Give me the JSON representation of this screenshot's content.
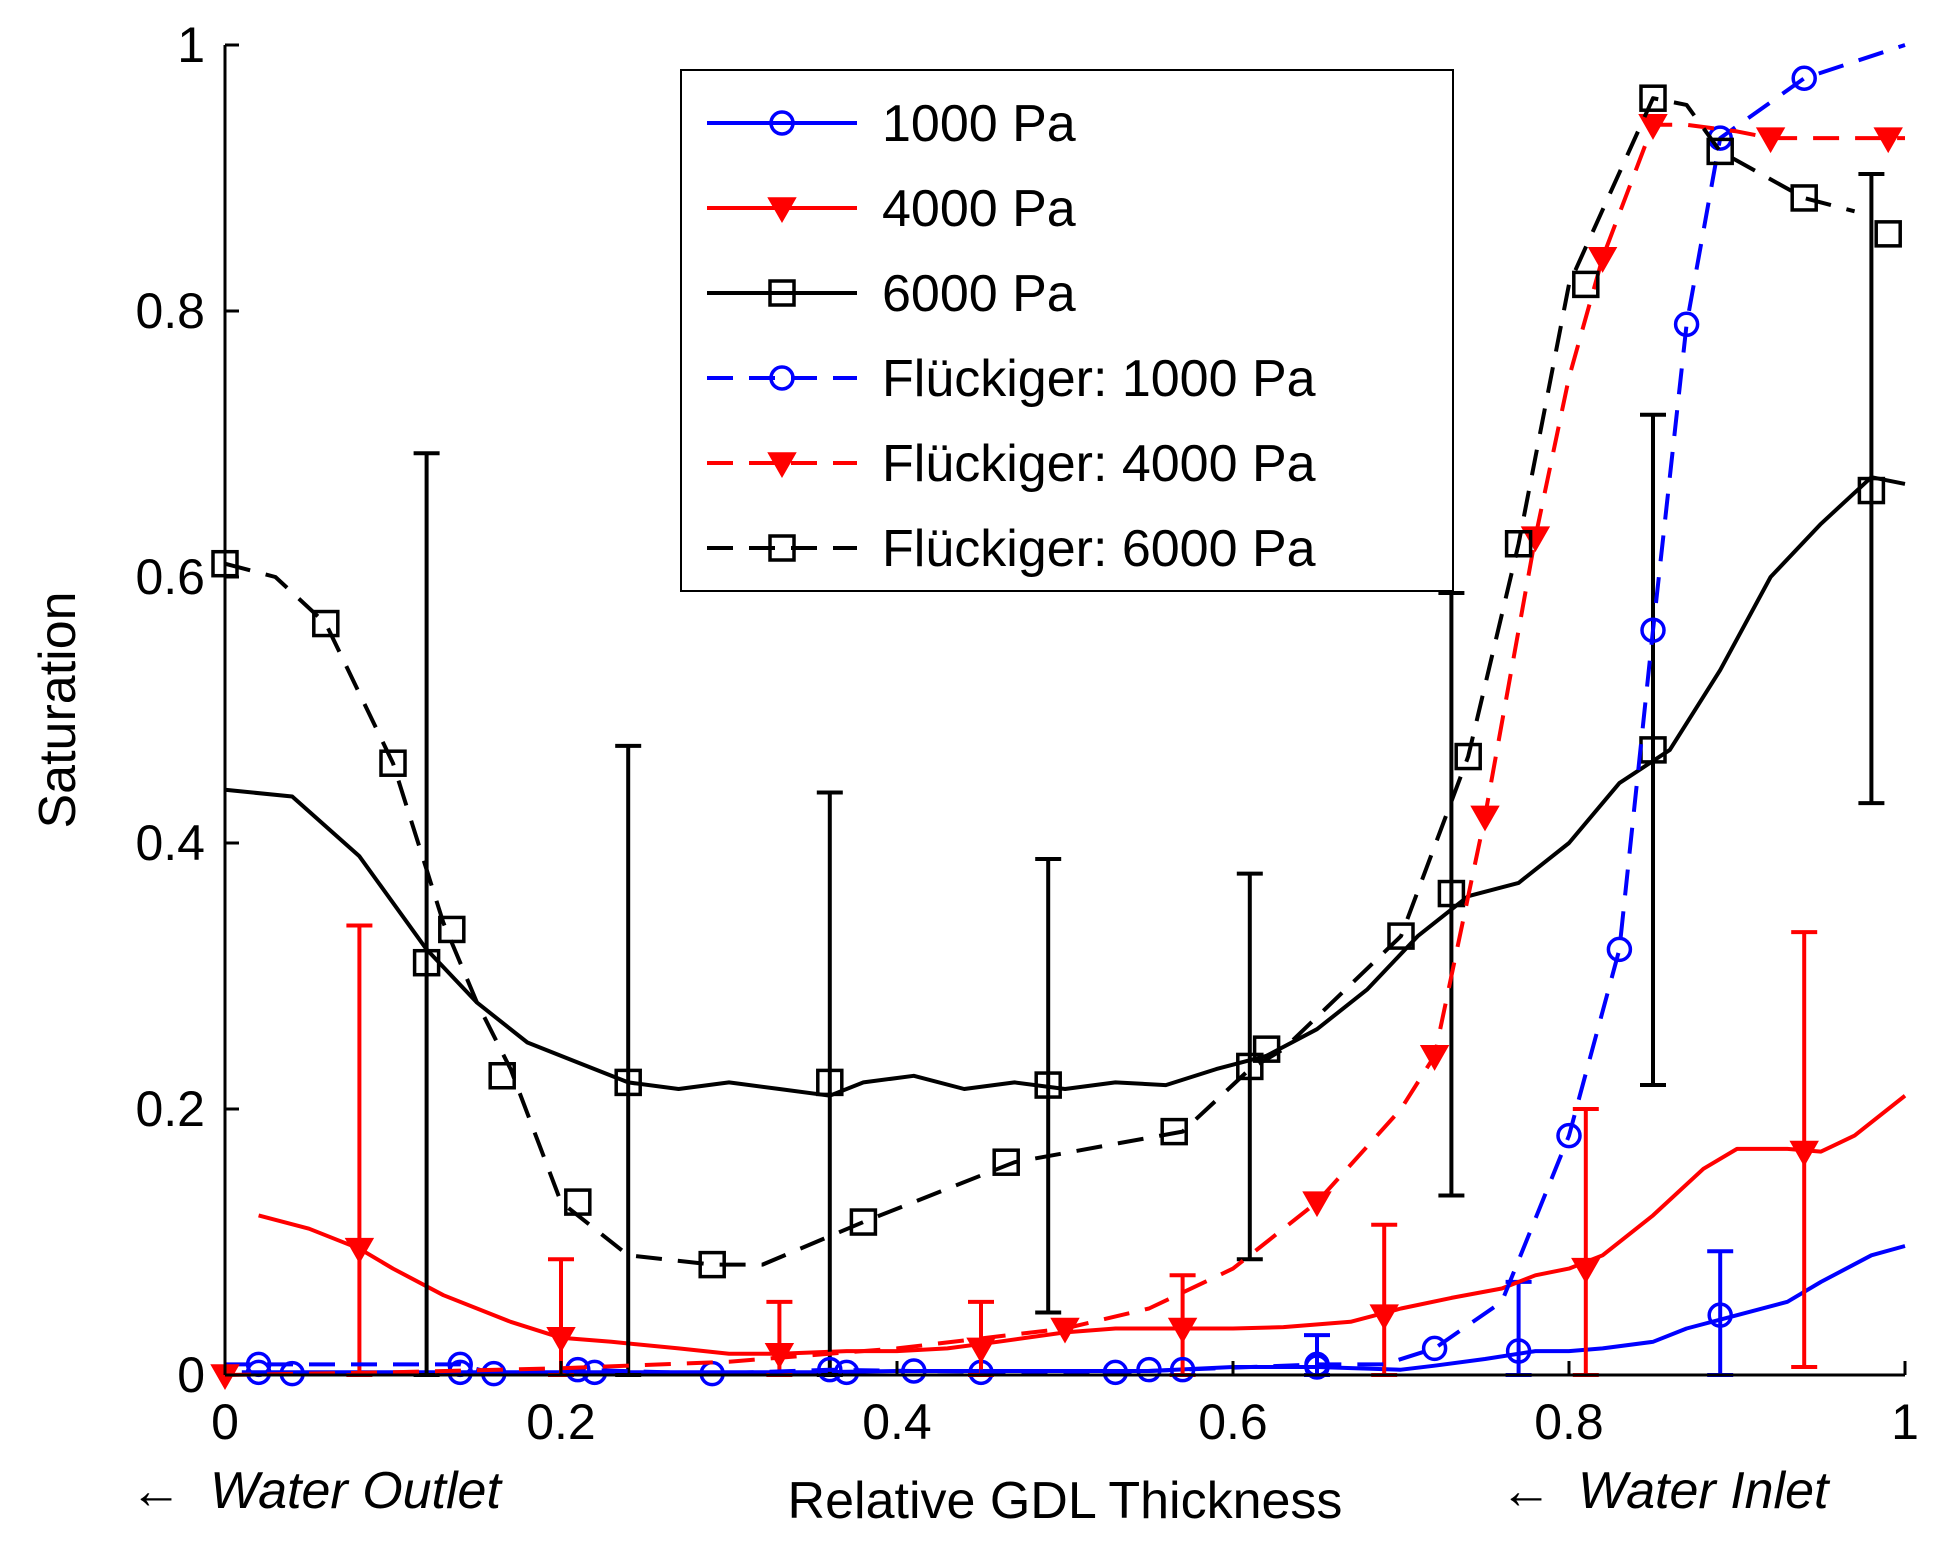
{
  "chart_data": {
    "type": "line",
    "title": "",
    "xlabel": "Relative GDL Thickness",
    "ylabel": "Saturation",
    "xlim": [
      0,
      1
    ],
    "ylim": [
      0,
      1
    ],
    "xticks": [
      0,
      0.2,
      0.4,
      0.6,
      0.8,
      1
    ],
    "xtick_labels": [
      "0",
      "0.2",
      "0.4",
      "0.6",
      "0.8",
      "1"
    ],
    "yticks": [
      0,
      0.2,
      0.4,
      0.6,
      0.8,
      1
    ],
    "ytick_labels": [
      "0",
      "0.2",
      "0.4",
      "0.6",
      "0.8",
      "1"
    ],
    "grid": false,
    "legend_position": "top-center",
    "annotations": {
      "left": "Water Outlet",
      "right": "Water Inlet",
      "arrow_glyph": "←"
    },
    "series": [
      {
        "name": "1000 Pa",
        "color": "#0000ff",
        "style": "solid",
        "marker": "circle",
        "x": [
          0.01,
          0.05,
          0.1,
          0.15,
          0.2,
          0.25,
          0.3,
          0.35,
          0.4,
          0.45,
          0.5,
          0.55,
          0.6,
          0.65,
          0.7,
          0.72,
          0.75,
          0.78,
          0.8,
          0.82,
          0.85,
          0.87,
          0.9,
          0.93,
          0.95,
          0.98,
          1.0
        ],
        "y": [
          0.002,
          0.002,
          0.002,
          0.002,
          0.002,
          0.002,
          0.002,
          0.002,
          0.003,
          0.003,
          0.003,
          0.003,
          0.006,
          0.006,
          0.004,
          0.007,
          0.012,
          0.018,
          0.018,
          0.02,
          0.025,
          0.035,
          0.045,
          0.055,
          0.07,
          0.09,
          0.097
        ],
        "marker_x": [
          0.02,
          0.14,
          0.22,
          0.37,
          0.45,
          0.55,
          0.65,
          0.77,
          0.89
        ],
        "marker_y": [
          0.002,
          0.002,
          0.002,
          0.002,
          0.002,
          0.004,
          0.006,
          0.018,
          0.045
        ],
        "errorbars": [
          {
            "x": 0.65,
            "low": 0.0,
            "high": 0.03
          },
          {
            "x": 0.77,
            "low": 0.0,
            "high": 0.07
          },
          {
            "x": 0.89,
            "low": 0.0,
            "high": 0.093
          }
        ]
      },
      {
        "name": "4000 Pa",
        "color": "#ff0000",
        "style": "solid",
        "marker": "triangle-down",
        "x": [
          0.02,
          0.05,
          0.08,
          0.1,
          0.13,
          0.17,
          0.2,
          0.23,
          0.27,
          0.3,
          0.33,
          0.37,
          0.4,
          0.43,
          0.46,
          0.5,
          0.53,
          0.57,
          0.6,
          0.63,
          0.67,
          0.7,
          0.73,
          0.76,
          0.78,
          0.8,
          0.82,
          0.85,
          0.88,
          0.9,
          0.93,
          0.95,
          0.97,
          1.0
        ],
        "y": [
          0.12,
          0.11,
          0.095,
          0.08,
          0.06,
          0.04,
          0.028,
          0.025,
          0.02,
          0.016,
          0.016,
          0.018,
          0.018,
          0.02,
          0.025,
          0.032,
          0.035,
          0.035,
          0.035,
          0.036,
          0.04,
          0.05,
          0.058,
          0.065,
          0.075,
          0.08,
          0.09,
          0.12,
          0.155,
          0.17,
          0.17,
          0.168,
          0.18,
          0.21
        ],
        "marker_x": [
          0.08,
          0.2,
          0.33,
          0.45,
          0.57,
          0.69,
          0.81,
          0.94
        ],
        "marker_y": [
          0.095,
          0.028,
          0.016,
          0.02,
          0.035,
          0.045,
          0.08,
          0.168
        ],
        "errorbars": [
          {
            "x": 0.08,
            "low": 0.0,
            "high": 0.338
          },
          {
            "x": 0.2,
            "low": 0.0,
            "high": 0.087
          },
          {
            "x": 0.33,
            "low": 0.0,
            "high": 0.055
          },
          {
            "x": 0.45,
            "low": 0.0,
            "high": 0.055
          },
          {
            "x": 0.57,
            "low": 0.0,
            "high": 0.075
          },
          {
            "x": 0.69,
            "low": 0.0,
            "high": 0.113
          },
          {
            "x": 0.81,
            "low": 0.0,
            "high": 0.2
          },
          {
            "x": 0.94,
            "low": 0.006,
            "high": 0.333
          }
        ]
      },
      {
        "name": "6000 Pa",
        "color": "#000000",
        "style": "solid",
        "marker": "square",
        "x": [
          0.0,
          0.04,
          0.08,
          0.12,
          0.15,
          0.18,
          0.21,
          0.24,
          0.27,
          0.3,
          0.33,
          0.36,
          0.38,
          0.41,
          0.44,
          0.47,
          0.5,
          0.53,
          0.56,
          0.59,
          0.62,
          0.65,
          0.68,
          0.71,
          0.74,
          0.77,
          0.8,
          0.83,
          0.86,
          0.89,
          0.92,
          0.95,
          0.98,
          1.0
        ],
        "y": [
          0.44,
          0.435,
          0.39,
          0.32,
          0.28,
          0.25,
          0.235,
          0.22,
          0.215,
          0.22,
          0.215,
          0.21,
          0.22,
          0.225,
          0.215,
          0.22,
          0.215,
          0.22,
          0.218,
          0.23,
          0.24,
          0.26,
          0.29,
          0.33,
          0.36,
          0.37,
          0.4,
          0.445,
          0.47,
          0.53,
          0.6,
          0.64,
          0.675,
          0.67
        ],
        "marker_x": [
          0.12,
          0.24,
          0.36,
          0.49,
          0.61,
          0.73,
          0.85,
          0.98
        ],
        "marker_y": [
          0.31,
          0.22,
          0.22,
          0.218,
          0.232,
          0.362,
          0.47,
          0.665
        ],
        "errorbars": [
          {
            "x": 0.12,
            "low": 0.0,
            "high": 0.693
          },
          {
            "x": 0.24,
            "low": 0.0,
            "high": 0.473
          },
          {
            "x": 0.36,
            "low": 0.0,
            "high": 0.438
          },
          {
            "x": 0.49,
            "low": 0.047,
            "high": 0.388
          },
          {
            "x": 0.61,
            "low": 0.087,
            "high": 0.377
          },
          {
            "x": 0.73,
            "low": 0.135,
            "high": 0.588
          },
          {
            "x": 0.85,
            "low": 0.218,
            "high": 0.722
          },
          {
            "x": 0.98,
            "low": 0.43,
            "high": 0.903
          }
        ]
      },
      {
        "name": "Flückiger: 1000 Pa",
        "color": "#0000ff",
        "style": "dashed",
        "marker": "circle",
        "x": [
          0.0,
          0.04,
          0.14,
          0.16,
          0.21,
          0.29,
          0.36,
          0.41,
          0.53,
          0.57,
          0.65,
          0.69,
          0.72,
          0.76,
          0.8,
          0.83,
          0.85,
          0.87,
          0.89,
          0.94,
          1.0
        ],
        "y": [
          0.008,
          0.008,
          0.008,
          0.001,
          0.004,
          0.001,
          0.004,
          0.003,
          0.002,
          0.004,
          0.008,
          0.008,
          0.02,
          0.055,
          0.18,
          0.32,
          0.56,
          0.79,
          0.93,
          0.975,
          1.0
        ],
        "marker_x": [
          0.02,
          0.04,
          0.14,
          0.16,
          0.21,
          0.29,
          0.36,
          0.41,
          0.53,
          0.57,
          0.65,
          0.72,
          0.8,
          0.83,
          0.85,
          0.87,
          0.89,
          0.94
        ],
        "marker_y": [
          0.008,
          0.001,
          0.008,
          0.001,
          0.004,
          0.001,
          0.004,
          0.003,
          0.002,
          0.004,
          0.008,
          0.02,
          0.18,
          0.32,
          0.56,
          0.79,
          0.93,
          0.975
        ]
      },
      {
        "name": "Flückiger: 4000 Pa",
        "color": "#ff0000",
        "style": "dashed",
        "marker": "triangle-down",
        "x": [
          0.0,
          0.1,
          0.2,
          0.3,
          0.4,
          0.5,
          0.55,
          0.6,
          0.65,
          0.7,
          0.72,
          0.75,
          0.78,
          0.8,
          0.82,
          0.85,
          0.87,
          0.9,
          0.92,
          0.95,
          1.0
        ],
        "y": [
          0.0,
          0.002,
          0.005,
          0.01,
          0.02,
          0.035,
          0.05,
          0.08,
          0.13,
          0.2,
          0.24,
          0.42,
          0.63,
          0.75,
          0.84,
          0.94,
          0.94,
          0.935,
          0.93,
          0.93,
          0.93
        ],
        "marker_x": [
          0.0,
          0.5,
          0.65,
          0.72,
          0.75,
          0.78,
          0.82,
          0.85,
          0.92,
          0.99
        ],
        "marker_y": [
          0.0,
          0.035,
          0.13,
          0.24,
          0.42,
          0.63,
          0.84,
          0.94,
          0.93,
          0.93
        ]
      },
      {
        "name": "Flückiger: 6000 Pa",
        "color": "#000000",
        "style": "dashed",
        "marker": "square",
        "x": [
          0.0,
          0.03,
          0.06,
          0.1,
          0.13,
          0.15,
          0.17,
          0.2,
          0.24,
          0.29,
          0.32,
          0.38,
          0.47,
          0.57,
          0.61,
          0.63,
          0.7,
          0.74,
          0.77,
          0.8,
          0.85,
          0.87,
          0.89,
          0.94,
          0.97
        ],
        "y": [
          0.61,
          0.6,
          0.565,
          0.46,
          0.34,
          0.28,
          0.23,
          0.13,
          0.09,
          0.083,
          0.083,
          0.115,
          0.16,
          0.183,
          0.23,
          0.245,
          0.33,
          0.465,
          0.625,
          0.82,
          0.96,
          0.955,
          0.92,
          0.885,
          0.875
        ],
        "marker_x": [
          0.0,
          0.06,
          0.1,
          0.135,
          0.165,
          0.21,
          0.29,
          0.38,
          0.465,
          0.565,
          0.62,
          0.7,
          0.74,
          0.77,
          0.81,
          0.85,
          0.89,
          0.94,
          0.99
        ],
        "marker_y": [
          0.61,
          0.565,
          0.46,
          0.335,
          0.225,
          0.13,
          0.083,
          0.115,
          0.16,
          0.183,
          0.245,
          0.33,
          0.465,
          0.625,
          0.82,
          0.96,
          0.92,
          0.885,
          0.858
        ]
      }
    ]
  }
}
